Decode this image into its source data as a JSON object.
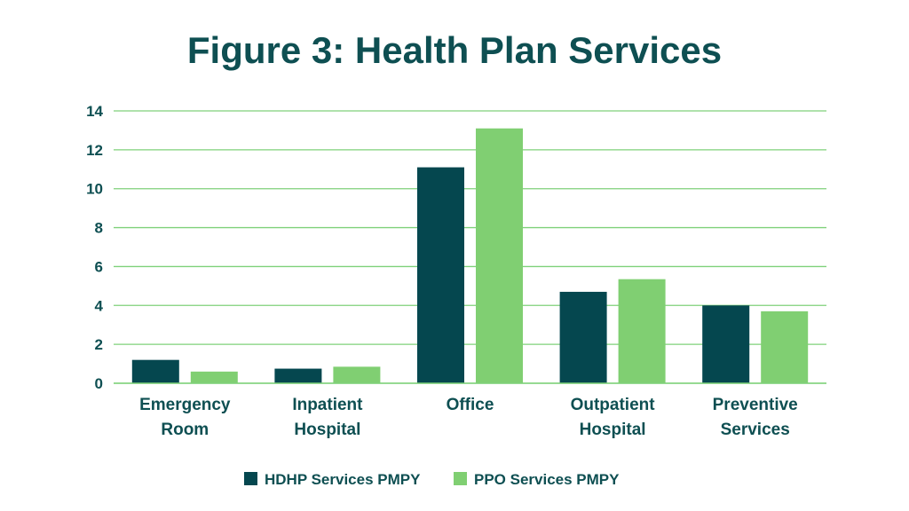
{
  "colors": {
    "title": "#0e4f52",
    "text": "#0e4f52",
    "grid": "#7fd17a",
    "axis": "#7fd17a",
    "series": [
      "#05474f",
      "#80cf72"
    ]
  },
  "chart_data": {
    "type": "bar",
    "title": "Figure 3: Health Plan Services",
    "xlabel": "",
    "ylabel": "",
    "ylim": [
      0,
      14
    ],
    "yticks": [
      "0",
      "2",
      "4",
      "6",
      "8",
      "10",
      "12",
      "14"
    ],
    "grid": true,
    "legend_position": "bottom-center",
    "categories": [
      [
        "Emergency",
        "Room"
      ],
      [
        "Inpatient",
        "Hospital"
      ],
      [
        "Office"
      ],
      [
        "Outpatient",
        "Hospital"
      ],
      [
        "Preventive",
        "Services"
      ]
    ],
    "series": [
      {
        "name": "HDHP Services PMPY",
        "values": [
          1.2,
          0.75,
          11.1,
          4.7,
          4.0
        ]
      },
      {
        "name": "PPO Services PMPY",
        "values": [
          0.6,
          0.85,
          13.1,
          5.35,
          3.7
        ]
      }
    ]
  }
}
